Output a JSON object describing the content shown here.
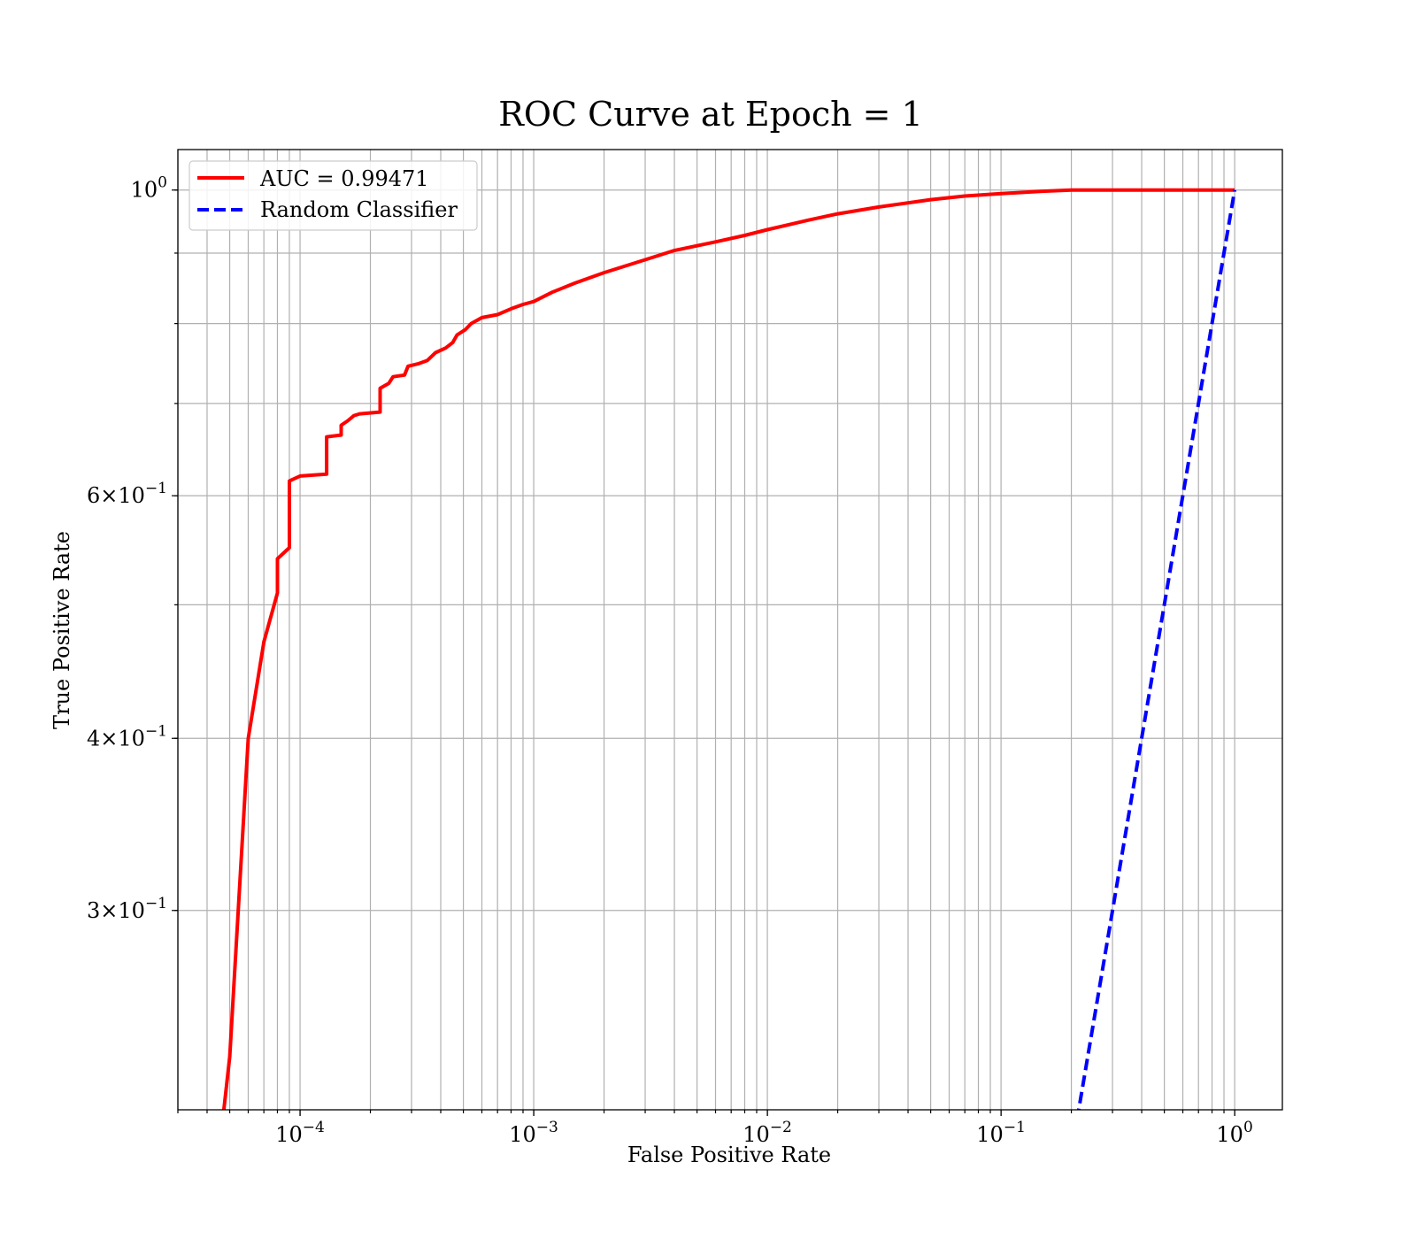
{
  "chart_data": {
    "type": "line",
    "title": "ROC Curve at Epoch = 1",
    "xlabel": "False Positive Rate",
    "ylabel": "True Positive Rate",
    "xscale": "log",
    "yscale": "log",
    "xlim": [
      3e-05,
      1.6
    ],
    "ylim": [
      0.215,
      1.07
    ],
    "grid": "both major and minor",
    "legend_position": "upper-left",
    "x_ticks": [
      {
        "base": "10",
        "exp": "−4",
        "value": 0.0001
      },
      {
        "base": "10",
        "exp": "−3",
        "value": 0.001
      },
      {
        "base": "10",
        "exp": "−2",
        "value": 0.01
      },
      {
        "base": "10",
        "exp": "−1",
        "value": 0.1
      },
      {
        "base": "10",
        "exp": "0",
        "value": 1
      }
    ],
    "y_ticks": [
      {
        "base": "3×10",
        "exp": "−1",
        "value": 0.3
      },
      {
        "base": "4×10",
        "exp": "−1",
        "value": 0.4
      },
      {
        "base": "6×10",
        "exp": "−1",
        "value": 0.6
      },
      {
        "base": "10",
        "exp": "0",
        "value": 1
      }
    ],
    "series": [
      {
        "name": "AUC = 0.99471",
        "color": "#ff0000",
        "linestyle": "solid",
        "x": [
          4.5e-05,
          5e-05,
          6e-05,
          7e-05,
          8e-05,
          8e-05,
          9e-05,
          9e-05,
          0.0001,
          0.00013,
          0.00013,
          0.00015,
          0.00015,
          0.00016,
          0.00017,
          0.00018,
          0.00022,
          0.00022,
          0.00024,
          0.00025,
          0.00028,
          0.00029,
          0.00032,
          0.00035,
          0.00038,
          0.00042,
          0.00045,
          0.00047,
          0.00051,
          0.00054,
          0.0006,
          0.0007,
          0.0008,
          0.0009,
          0.001,
          0.0012,
          0.0015,
          0.002,
          0.003,
          0.004,
          0.006,
          0.008,
          0.01,
          0.015,
          0.02,
          0.03,
          0.05,
          0.07,
          0.1,
          0.15,
          0.2,
          0.25,
          0.35,
          0.5,
          1
        ],
        "y": [
          0.2,
          0.235,
          0.4,
          0.47,
          0.51,
          0.54,
          0.55,
          0.615,
          0.62,
          0.622,
          0.662,
          0.664,
          0.675,
          0.68,
          0.686,
          0.688,
          0.69,
          0.718,
          0.724,
          0.732,
          0.734,
          0.745,
          0.748,
          0.752,
          0.762,
          0.768,
          0.775,
          0.785,
          0.792,
          0.8,
          0.808,
          0.812,
          0.82,
          0.826,
          0.83,
          0.843,
          0.856,
          0.871,
          0.89,
          0.904,
          0.917,
          0.927,
          0.936,
          0.951,
          0.961,
          0.972,
          0.984,
          0.99,
          0.994,
          0.998,
          1.0,
          1.0,
          1.0,
          1.0,
          1.0
        ]
      },
      {
        "name": "Random Classifier",
        "color": "#0000ff",
        "linestyle": "dashed",
        "x": [
          0.2,
          0.25,
          0.3,
          0.4,
          0.5,
          0.6,
          0.7,
          0.8,
          0.9,
          1.0
        ],
        "y": [
          0.2,
          0.25,
          0.3,
          0.4,
          0.5,
          0.6,
          0.7,
          0.8,
          0.9,
          1.0
        ]
      }
    ]
  }
}
